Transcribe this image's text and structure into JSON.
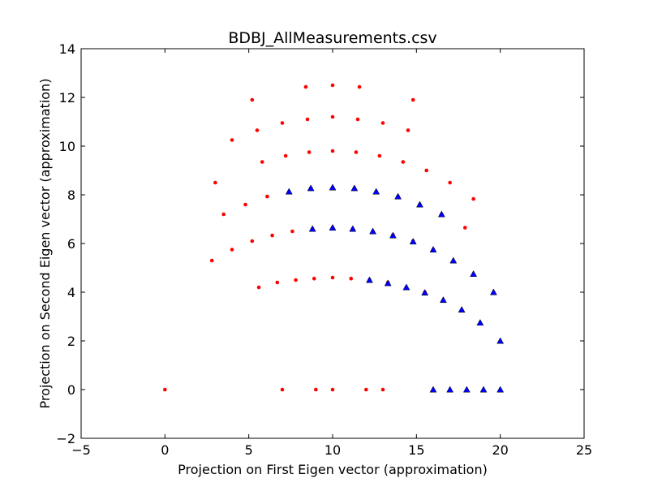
{
  "chart_data": {
    "type": "scatter",
    "title": "BDBJ_AllMeasurements.csv",
    "xlabel": "Projection on First Eigen vector (approximation)",
    "ylabel": "Projection on Second Eigen vector (approximation)",
    "xlim": [
      -5,
      25
    ],
    "ylim": [
      -2,
      14
    ],
    "xticks": [
      -5,
      0,
      5,
      10,
      15,
      20,
      25
    ],
    "yticks": [
      -2,
      0,
      2,
      4,
      6,
      8,
      10,
      12,
      14
    ],
    "xtick_labels": [
      "−5",
      "0",
      "5",
      "10",
      "15",
      "20",
      "25"
    ],
    "ytick_labels": [
      "−2",
      "0",
      "2",
      "4",
      "6",
      "8",
      "10",
      "12",
      "14"
    ],
    "grid": false,
    "legend": false,
    "series": [
      {
        "marker": "circle",
        "color": "#ff0000",
        "points": [
          [
            0,
            0
          ],
          [
            7,
            0
          ],
          [
            9,
            0
          ],
          [
            10,
            0
          ],
          [
            12,
            0
          ],
          [
            13,
            0
          ],
          [
            5.6,
            4.2
          ],
          [
            6.7,
            4.4
          ],
          [
            7.8,
            4.5
          ],
          [
            8.9,
            4.56
          ],
          [
            10,
            4.6
          ],
          [
            11.1,
            4.56
          ],
          [
            12.2,
            4.5
          ],
          [
            13.3,
            4.4
          ],
          [
            14.4,
            4.2
          ],
          [
            15.5,
            4.0
          ],
          [
            2.8,
            5.3
          ],
          [
            4,
            5.75
          ],
          [
            5.2,
            6.1
          ],
          [
            6.4,
            6.33
          ],
          [
            7.6,
            6.5
          ],
          [
            8.8,
            6.6
          ],
          [
            10,
            6.65
          ],
          [
            11.2,
            6.6
          ],
          [
            12.4,
            6.5
          ],
          [
            13.6,
            6.35
          ],
          [
            14.8,
            6.1
          ],
          [
            16,
            5.75
          ],
          [
            17.9,
            6.65
          ],
          [
            3,
            8.5
          ],
          [
            3.5,
            7.2
          ],
          [
            4.8,
            7.6
          ],
          [
            6.1,
            7.93
          ],
          [
            7.4,
            8.13
          ],
          [
            8.7,
            8.27
          ],
          [
            10,
            8.3
          ],
          [
            11.3,
            8.27
          ],
          [
            12.6,
            8.13
          ],
          [
            13.9,
            7.93
          ],
          [
            15.2,
            7.6
          ],
          [
            16.5,
            7.2
          ],
          [
            17,
            8.5
          ],
          [
            18.4,
            7.83
          ],
          [
            4,
            10.25
          ],
          [
            5.8,
            9.35
          ],
          [
            7.2,
            9.6
          ],
          [
            8.6,
            9.75
          ],
          [
            10,
            9.8
          ],
          [
            11.4,
            9.75
          ],
          [
            12.8,
            9.6
          ],
          [
            14.2,
            9.35
          ],
          [
            15.6,
            9.0
          ],
          [
            5.5,
            10.65
          ],
          [
            7,
            10.95
          ],
          [
            8.5,
            11.1
          ],
          [
            10,
            11.2
          ],
          [
            11.5,
            11.1
          ],
          [
            13,
            10.95
          ],
          [
            14.5,
            10.65
          ],
          [
            5.2,
            11.9
          ],
          [
            8.4,
            12.43
          ],
          [
            10,
            12.5
          ],
          [
            11.6,
            12.43
          ],
          [
            14.8,
            11.9
          ]
        ]
      },
      {
        "marker": "triangle",
        "color": "#0000ff",
        "points": [
          [
            16,
            0
          ],
          [
            17,
            0
          ],
          [
            18,
            0
          ],
          [
            19,
            0
          ],
          [
            20,
            0
          ],
          [
            20,
            2.0
          ],
          [
            18.8,
            2.75
          ],
          [
            17.7,
            3.28
          ],
          [
            16.6,
            3.68
          ],
          [
            15.5,
            3.98
          ],
          [
            14.4,
            4.2
          ],
          [
            13.3,
            4.37
          ],
          [
            12.2,
            4.5
          ],
          [
            19.6,
            4.0
          ],
          [
            18.4,
            4.75
          ],
          [
            17.2,
            5.3
          ],
          [
            16,
            5.75
          ],
          [
            14.8,
            6.08
          ],
          [
            13.6,
            6.33
          ],
          [
            12.4,
            6.5
          ],
          [
            11.2,
            6.6
          ],
          [
            10,
            6.65
          ],
          [
            8.8,
            6.6
          ],
          [
            16.5,
            7.2
          ],
          [
            15.2,
            7.6
          ],
          [
            13.9,
            7.93
          ],
          [
            12.6,
            8.13
          ],
          [
            11.3,
            8.27
          ],
          [
            10,
            8.3
          ],
          [
            8.7,
            8.27
          ],
          [
            7.4,
            8.13
          ]
        ]
      }
    ]
  }
}
